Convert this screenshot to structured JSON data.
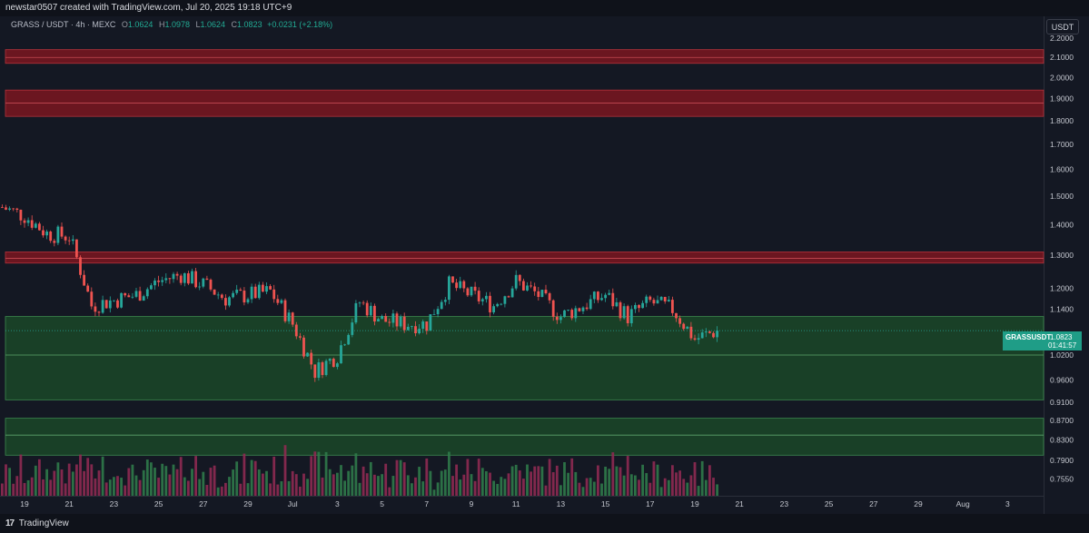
{
  "header": {
    "attribution": "newstar0507 created with TradingView.com, Jul 20, 2025 19:18 UTC+9"
  },
  "legend": {
    "symbol": "GRASS / USDT · 4h · MEXC",
    "open_label": "O",
    "open": "1.0624",
    "high_label": "H",
    "high": "1.0978",
    "low_label": "L",
    "low": "1.0624",
    "close_label": "C",
    "close": "1.0823",
    "change": "+0.0231 (+2.18%)"
  },
  "currency_button": "USDT",
  "price_tag": {
    "ticker": "GRASSUSDT",
    "price": "1.0823",
    "countdown": "01:41:57"
  },
  "footer": {
    "logo": "17",
    "brand": "TradingView"
  },
  "colors": {
    "background": "#141823",
    "up": "#26a69a",
    "down": "#ef5350",
    "resistance_zone": "#7a1620",
    "support_zone": "#1b4d2a"
  },
  "chart_data": {
    "type": "candlestick",
    "y_axis_scale": "log",
    "y_range": [
      0.725,
      2.32
    ],
    "y_ticks": [
      "2.2000",
      "2.1000",
      "2.0000",
      "1.9000",
      "1.8000",
      "1.7000",
      "1.6000",
      "1.5000",
      "1.4000",
      "1.3000",
      "1.2000",
      "1.1400",
      "1.0200",
      "0.9600",
      "0.9100",
      "0.8700",
      "0.8300",
      "0.7900",
      "0.7550"
    ],
    "x_ticks": [
      "19",
      "21",
      "23",
      "25",
      "27",
      "29",
      "Jul",
      "3",
      "5",
      "7",
      "9",
      "11",
      "13",
      "15",
      "17",
      "19",
      "21",
      "23",
      "25",
      "27",
      "29",
      "Aug",
      "3"
    ],
    "zones": [
      {
        "type": "resistance",
        "low": 2.07,
        "high": 2.14,
        "mid": 2.1
      },
      {
        "type": "resistance",
        "low": 1.82,
        "high": 1.94,
        "mid": 1.88
      },
      {
        "type": "resistance",
        "low": 1.275,
        "high": 1.31,
        "mid": 1.29
      },
      {
        "type": "support",
        "low": 0.915,
        "high": 1.12,
        "mid": 1.02
      },
      {
        "type": "support",
        "low": 0.8,
        "high": 0.875,
        "mid": 0.84
      }
    ],
    "key_points": [
      {
        "date": "Jun 18",
        "price": 1.46
      },
      {
        "date": "Jun 19",
        "price": 1.43
      },
      {
        "date": "Jun 20",
        "price": 1.37
      },
      {
        "date": "Jun 21",
        "price": 1.36
      },
      {
        "date": "Jun 22",
        "price": 1.15
      },
      {
        "date": "Jun 24",
        "price": 1.18
      },
      {
        "date": "Jun 25",
        "price": 1.22
      },
      {
        "date": "Jun 26",
        "price": 1.24
      },
      {
        "date": "Jun 27",
        "price": 1.21
      },
      {
        "date": "Jun 28",
        "price": 1.17
      },
      {
        "date": "Jun 29",
        "price": 1.18
      },
      {
        "date": "Jun 30",
        "price": 1.19
      },
      {
        "date": "Jul 1",
        "price": 1.1
      },
      {
        "date": "Jul 2",
        "price": 0.98
      },
      {
        "date": "Jul 3",
        "price": 1.02
      },
      {
        "date": "Jul 4",
        "price": 1.16
      },
      {
        "date": "Jul 5",
        "price": 1.11
      },
      {
        "date": "Jul 6",
        "price": 1.1
      },
      {
        "date": "Jul 7",
        "price": 1.1
      },
      {
        "date": "Jul 8",
        "price": 1.21
      },
      {
        "date": "Jul 9",
        "price": 1.18
      },
      {
        "date": "Jul 10",
        "price": 1.15
      },
      {
        "date": "Jul 11",
        "price": 1.22
      },
      {
        "date": "Jul 12",
        "price": 1.18
      },
      {
        "date": "Jul 13",
        "price": 1.12
      },
      {
        "date": "Jul 14",
        "price": 1.15
      },
      {
        "date": "Jul 15",
        "price": 1.18
      },
      {
        "date": "Jul 16",
        "price": 1.12
      },
      {
        "date": "Jul 17",
        "price": 1.16
      },
      {
        "date": "Jul 18",
        "price": 1.14
      },
      {
        "date": "Jul 19",
        "price": 1.06
      },
      {
        "date": "Jul 20",
        "price": 1.0823
      }
    ],
    "current_price": 1.0823
  }
}
